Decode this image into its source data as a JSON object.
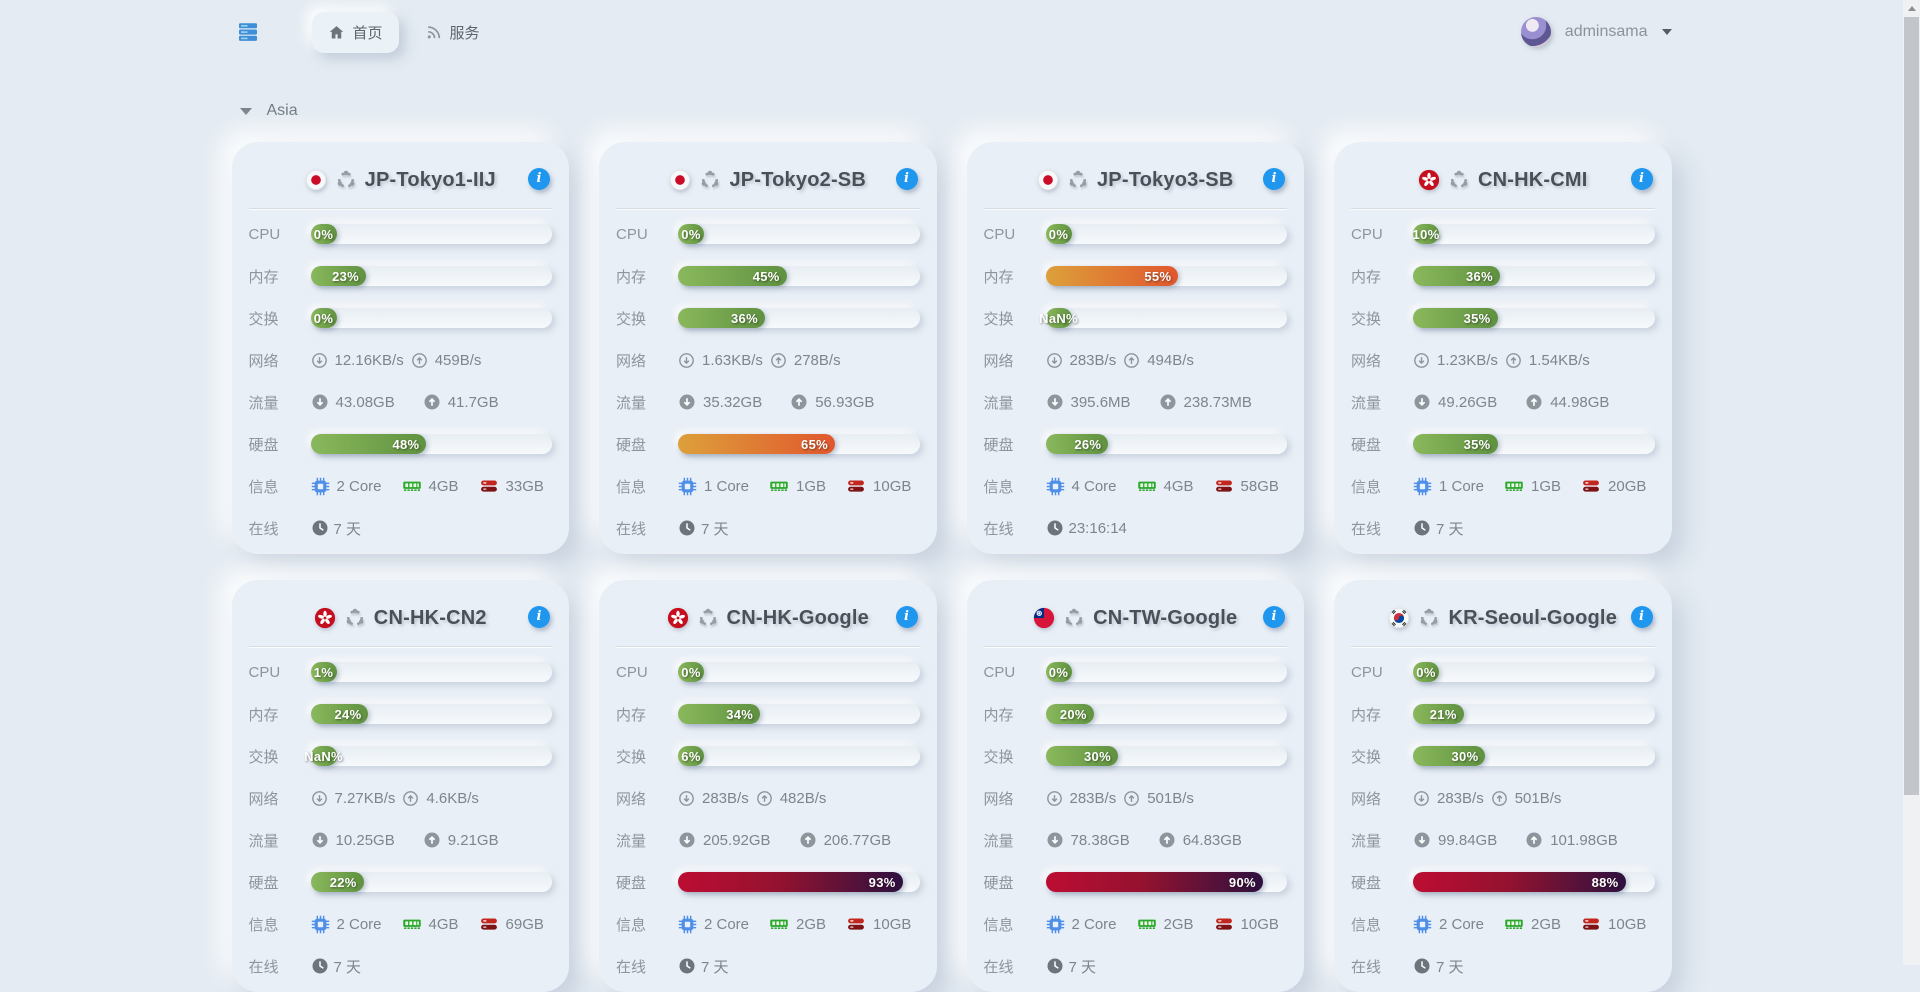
{
  "navbar": {
    "logo_icon": "server-stack-icon",
    "tabs": [
      {
        "label": "首页",
        "icon": "home-icon",
        "active": true
      },
      {
        "label": "服务",
        "icon": "rss-icon",
        "active": false
      }
    ],
    "user": {
      "name": "adminsama",
      "caret_icon": "caret-down-icon"
    }
  },
  "section": {
    "title": "Asia",
    "collapse_icon": "caret-down-icon"
  },
  "row_labels": {
    "cpu": "CPU",
    "memory": "内存",
    "swap": "交换",
    "network": "网络",
    "traffic": "流量",
    "disk": "硬盘",
    "info": "信息",
    "online": "在线"
  },
  "colors": {
    "bar_green": "#6f9d4a",
    "bar_orange": "#e0722f",
    "bar_red": "#b00c31",
    "info_blue": "#1f97ef",
    "chip_blue": "#4f8fe8",
    "ram_green": "#2ca62c",
    "disk_red": "#c3261f",
    "background": "#e4ebf2"
  },
  "servers": [
    {
      "name": "JP-Tokyo1-IIJ",
      "flag": "jp",
      "os": "ubuntu",
      "cpu": {
        "label": "0%",
        "pct": 0,
        "level": "green"
      },
      "memory": {
        "label": "23%",
        "pct": 23,
        "level": "green"
      },
      "swap": {
        "label": "0%",
        "pct": 0,
        "level": "green"
      },
      "network": {
        "down": "12.16KB/s",
        "up": "459B/s"
      },
      "traffic": {
        "down": "43.08GB",
        "up": "41.7GB"
      },
      "disk": {
        "label": "48%",
        "pct": 48,
        "level": "green"
      },
      "info": {
        "cpu": "2 Core",
        "ram": "4GB",
        "disk": "33GB"
      },
      "online": "7 天"
    },
    {
      "name": "JP-Tokyo2-SB",
      "flag": "jp",
      "os": "ubuntu",
      "cpu": {
        "label": "0%",
        "pct": 0,
        "level": "green"
      },
      "memory": {
        "label": "45%",
        "pct": 45,
        "level": "green"
      },
      "swap": {
        "label": "36%",
        "pct": 36,
        "level": "green"
      },
      "network": {
        "down": "1.63KB/s",
        "up": "278B/s"
      },
      "traffic": {
        "down": "35.32GB",
        "up": "56.93GB"
      },
      "disk": {
        "label": "65%",
        "pct": 65,
        "level": "orange"
      },
      "info": {
        "cpu": "1 Core",
        "ram": "1GB",
        "disk": "10GB"
      },
      "online": "7 天"
    },
    {
      "name": "JP-Tokyo3-SB",
      "flag": "jp",
      "os": "ubuntu",
      "cpu": {
        "label": "0%",
        "pct": 0,
        "level": "green"
      },
      "memory": {
        "label": "55%",
        "pct": 55,
        "level": "orange"
      },
      "swap": {
        "label": "NaN%",
        "pct": null,
        "level": "green"
      },
      "network": {
        "down": "283B/s",
        "up": "494B/s"
      },
      "traffic": {
        "down": "395.6MB",
        "up": "238.73MB"
      },
      "disk": {
        "label": "26%",
        "pct": 26,
        "level": "green"
      },
      "info": {
        "cpu": "4 Core",
        "ram": "4GB",
        "disk": "58GB"
      },
      "online": "23:16:14"
    },
    {
      "name": "CN-HK-CMI",
      "flag": "hk",
      "os": "ubuntu",
      "cpu": {
        "label": "10%",
        "pct": 10,
        "level": "green"
      },
      "memory": {
        "label": "36%",
        "pct": 36,
        "level": "green"
      },
      "swap": {
        "label": "35%",
        "pct": 35,
        "level": "green"
      },
      "network": {
        "down": "1.23KB/s",
        "up": "1.54KB/s"
      },
      "traffic": {
        "down": "49.26GB",
        "up": "44.98GB"
      },
      "disk": {
        "label": "35%",
        "pct": 35,
        "level": "green"
      },
      "info": {
        "cpu": "1 Core",
        "ram": "1GB",
        "disk": "20GB"
      },
      "online": "7 天"
    },
    {
      "name": "CN-HK-CN2",
      "flag": "hk",
      "os": "ubuntu",
      "cpu": {
        "label": "1%",
        "pct": 1,
        "level": "green"
      },
      "memory": {
        "label": "24%",
        "pct": 24,
        "level": "green"
      },
      "swap": {
        "label": "NaN%",
        "pct": null,
        "level": "green"
      },
      "network": {
        "down": "7.27KB/s",
        "up": "4.6KB/s"
      },
      "traffic": {
        "down": "10.25GB",
        "up": "9.21GB"
      },
      "disk": {
        "label": "22%",
        "pct": 22,
        "level": "green"
      },
      "info": {
        "cpu": "2 Core",
        "ram": "4GB",
        "disk": "69GB"
      },
      "online": "7 天"
    },
    {
      "name": "CN-HK-Google",
      "flag": "hk",
      "os": "ubuntu",
      "cpu": {
        "label": "0%",
        "pct": 0,
        "level": "green"
      },
      "memory": {
        "label": "34%",
        "pct": 34,
        "level": "green"
      },
      "swap": {
        "label": "6%",
        "pct": 6,
        "level": "green"
      },
      "network": {
        "down": "283B/s",
        "up": "482B/s"
      },
      "traffic": {
        "down": "205.92GB",
        "up": "206.77GB"
      },
      "disk": {
        "label": "93%",
        "pct": 93,
        "level": "red"
      },
      "info": {
        "cpu": "2 Core",
        "ram": "2GB",
        "disk": "10GB"
      },
      "online": "7 天"
    },
    {
      "name": "CN-TW-Google",
      "flag": "tw",
      "os": "ubuntu",
      "cpu": {
        "label": "0%",
        "pct": 0,
        "level": "green"
      },
      "memory": {
        "label": "20%",
        "pct": 20,
        "level": "green"
      },
      "swap": {
        "label": "30%",
        "pct": 30,
        "level": "green"
      },
      "network": {
        "down": "283B/s",
        "up": "501B/s"
      },
      "traffic": {
        "down": "78.38GB",
        "up": "64.83GB"
      },
      "disk": {
        "label": "90%",
        "pct": 90,
        "level": "red"
      },
      "info": {
        "cpu": "2 Core",
        "ram": "2GB",
        "disk": "10GB"
      },
      "online": "7 天"
    },
    {
      "name": "KR-Seoul-Google",
      "flag": "kr",
      "os": "ubuntu",
      "cpu": {
        "label": "0%",
        "pct": 0,
        "level": "green"
      },
      "memory": {
        "label": "21%",
        "pct": 21,
        "level": "green"
      },
      "swap": {
        "label": "30%",
        "pct": 30,
        "level": "green"
      },
      "network": {
        "down": "283B/s",
        "up": "501B/s"
      },
      "traffic": {
        "down": "99.84GB",
        "up": "101.98GB"
      },
      "disk": {
        "label": "88%",
        "pct": 88,
        "level": "red"
      },
      "info": {
        "cpu": "2 Core",
        "ram": "2GB",
        "disk": "10GB"
      },
      "online": "7 天"
    }
  ]
}
